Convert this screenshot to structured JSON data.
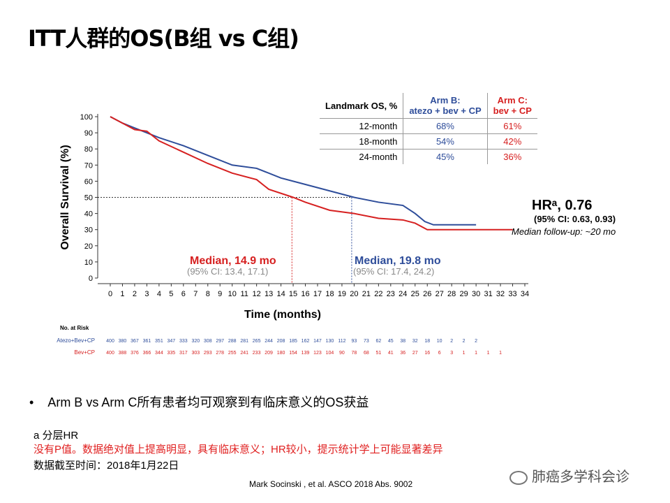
{
  "title": "ITT人群的OS(B组 vs C组)",
  "chart_data": {
    "type": "line",
    "xlabel": "Time (months)",
    "ylabel": "Overall Survival (%)",
    "xlim": [
      0,
      34
    ],
    "ylim": [
      0,
      100
    ],
    "xticks": [
      0,
      1,
      2,
      3,
      4,
      5,
      6,
      7,
      8,
      9,
      10,
      11,
      12,
      13,
      14,
      15,
      16,
      17,
      18,
      19,
      20,
      21,
      22,
      23,
      24,
      25,
      26,
      27,
      28,
      29,
      30,
      31,
      32,
      33,
      34
    ],
    "yticks": [
      0,
      10,
      20,
      30,
      40,
      50,
      60,
      70,
      80,
      90,
      100
    ],
    "series": [
      {
        "name": "Atezo+Bev+CP",
        "color": "#2e4d9a",
        "x": [
          0,
          1,
          2,
          4,
          6,
          8,
          10,
          12,
          14,
          16,
          18,
          20,
          22,
          24,
          25,
          25.8,
          26.5,
          30
        ],
        "y": [
          100,
          96,
          93,
          87,
          82,
          76,
          70,
          68,
          62,
          58,
          54,
          50,
          47,
          45,
          40,
          35,
          33,
          33
        ]
      },
      {
        "name": "Bev+CP",
        "color": "#d62020",
        "x": [
          0,
          1,
          2,
          3,
          4,
          6,
          8,
          10,
          12,
          13,
          15,
          16,
          18,
          20,
          22,
          24,
          25,
          26,
          33
        ],
        "y": [
          100,
          96,
          92,
          91,
          85,
          78,
          71,
          65,
          61,
          55,
          50,
          47,
          42,
          40,
          37,
          36,
          34,
          30,
          30
        ]
      }
    ],
    "annotations": {
      "median_c": "Median, 14.9 mo",
      "ci_c": "(95% CI: 13.4, 17.1)",
      "median_c_x": 14.9,
      "median_b": "Median, 19.8 mo",
      "ci_b": "(95% CI: 17.4, 24.2)",
      "median_b_x": 19.8,
      "hr": "HRᵃ, 0.76",
      "hr_ci": "(95% CI: 0.63, 0.93)",
      "followup": "Median follow-up: ~20 mo"
    },
    "risk_label": "No. at Risk",
    "risk": [
      {
        "name": "Atezo+Bev+CP",
        "values": [
          400,
          380,
          367,
          361,
          351,
          347,
          333,
          320,
          308,
          297,
          288,
          281,
          265,
          244,
          208,
          185,
          162,
          147,
          130,
          112,
          93,
          73,
          62,
          45,
          38,
          32,
          18,
          10,
          2,
          2,
          2
        ]
      },
      {
        "name": "Bev+CP",
        "values": [
          400,
          388,
          376,
          366,
          344,
          335,
          317,
          303,
          293,
          278,
          255,
          241,
          233,
          209,
          180,
          154,
          139,
          123,
          104,
          90,
          78,
          68,
          51,
          41,
          36,
          27,
          16,
          6,
          3,
          1,
          1,
          1,
          1
        ]
      }
    ]
  },
  "landmark": {
    "header": "Landmark OS, %",
    "armb": "Arm B:",
    "armb2": "atezo + bev + CP",
    "armc": "Arm C:",
    "armc2": "bev + CP",
    "rows": [
      {
        "label": "12-month",
        "b": "68%",
        "c": "61%"
      },
      {
        "label": "18-month",
        "b": "54%",
        "c": "42%"
      },
      {
        "label": "24-month",
        "b": "45%",
        "c": "36%"
      }
    ]
  },
  "bullet": "Arm B vs Arm C所有患者均可观察到有临床意义的OS获益",
  "fn1": "a 分层HR",
  "fn2": "没有P值。数据绝对值上提高明显，具有临床意义；HR较小，提示统计学上可能显著差异",
  "fn3": "数据截至时间：2018年1月22日",
  "citation": "Mark Socinski , et al.  ASCO 2018 Abs. 9002",
  "watermark": "肺癌多学科会诊"
}
